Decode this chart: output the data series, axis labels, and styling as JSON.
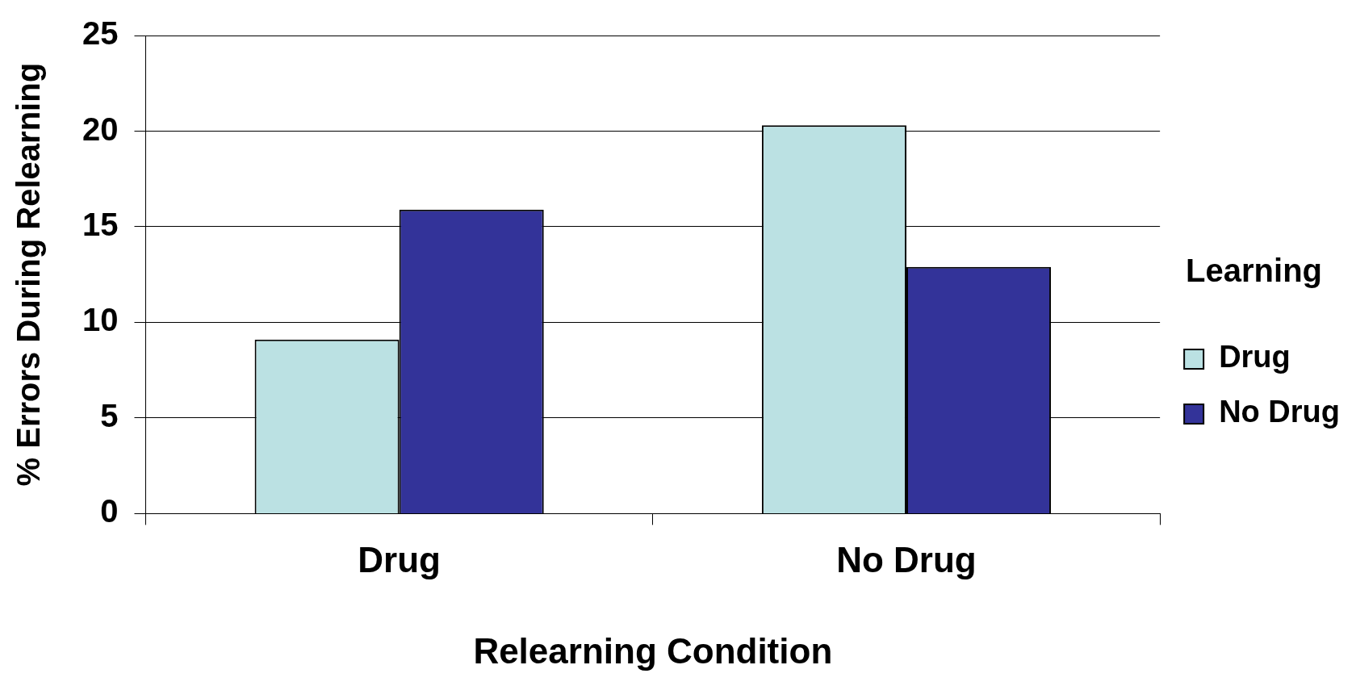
{
  "chart_data": {
    "type": "bar",
    "xlabel": "Relearning Condition",
    "ylabel": "% Errors During Relearning",
    "legend_title": "Learning",
    "categories": [
      "Drug",
      "No Drug"
    ],
    "series": [
      {
        "name": "Drug",
        "color": "#bbe1e3",
        "values": [
          9.1,
          20.3
        ]
      },
      {
        "name": "No Drug",
        "color": "#333399",
        "values": [
          15.9,
          12.9
        ]
      }
    ],
    "ylim": [
      0,
      25
    ],
    "yticks": [
      0,
      5,
      10,
      15,
      20,
      25
    ],
    "grid": "y",
    "legend": "right"
  }
}
